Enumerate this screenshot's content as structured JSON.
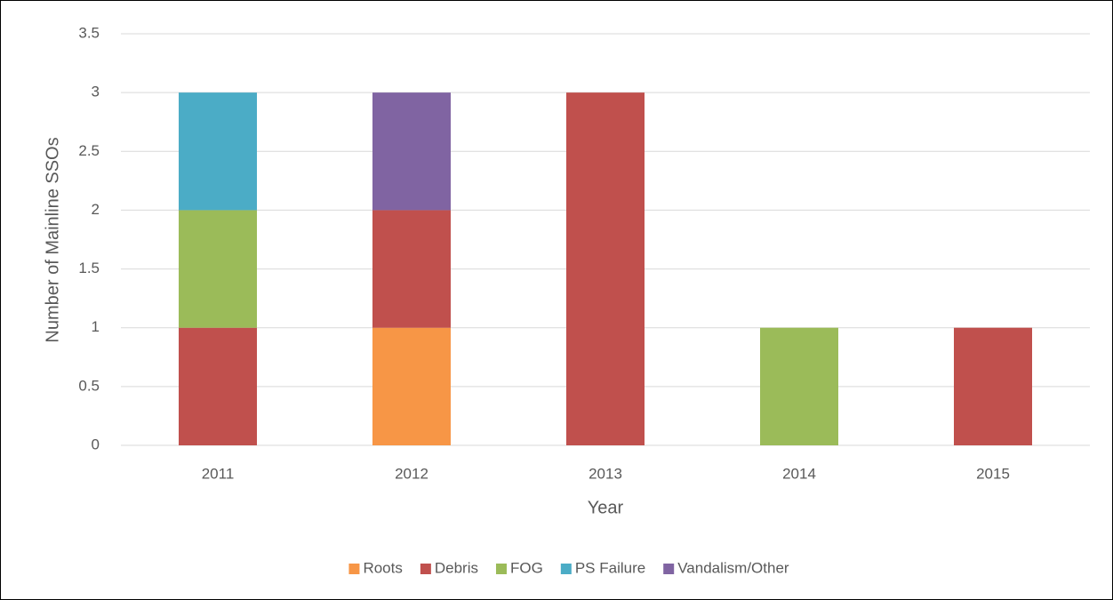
{
  "chart_data": {
    "type": "stacked_bar",
    "categories": [
      "2011",
      "2012",
      "2013",
      "2014",
      "2015"
    ],
    "series": [
      {
        "name": "Roots",
        "color": "#f79646",
        "values": [
          0,
          1,
          0,
          0,
          0
        ]
      },
      {
        "name": "Debris",
        "color": "#c0504d",
        "values": [
          1,
          1,
          3,
          0,
          1
        ]
      },
      {
        "name": "FOG",
        "color": "#9bbb59",
        "values": [
          1,
          0,
          0,
          1,
          0
        ]
      },
      {
        "name": "PS Failure",
        "color": "#4bacc6",
        "values": [
          1,
          0,
          0,
          0,
          0
        ]
      },
      {
        "name": "Vandalism/Other",
        "color": "#8064a2",
        "values": [
          0,
          1,
          0,
          0,
          0
        ]
      }
    ],
    "x_label": "Year",
    "y_label": "Number of Mainline SSOs",
    "ylim": [
      0,
      3.5
    ],
    "yticks": [
      0,
      0.5,
      1,
      1.5,
      2,
      2.5,
      3,
      3.5
    ],
    "grid": true,
    "legend": "bottom"
  }
}
